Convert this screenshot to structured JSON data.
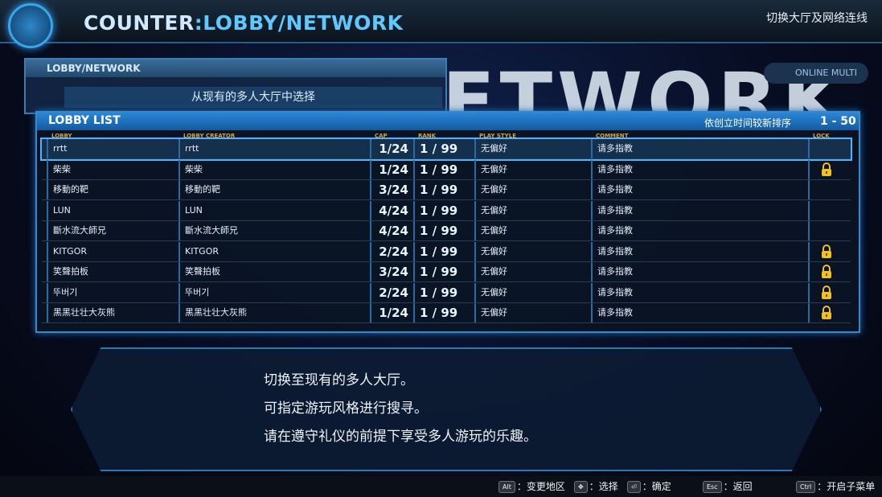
{
  "header": {
    "title_prefix": "COUNTER",
    "title_main": ":LOBBY/NETWORK",
    "hint": "切换大厅及网络连线"
  },
  "badge": "ONLINE MULTI",
  "backdrop_text": "ETWORK",
  "panel": {
    "title": "LOBBY/NETWORK",
    "subtitle": "从现有的多人大厅中选择"
  },
  "list": {
    "title": "LOBBY LIST",
    "sort": "依创立时间较新排序",
    "range": "1 - 50",
    "columns": [
      "LOBBY",
      "LOBBY CREATOR",
      "CAP",
      "RANK",
      "PLAY STYLE",
      "COMMENT",
      "LOCK"
    ],
    "rows": [
      {
        "lobby": "rrtt",
        "creator": "rrtt",
        "cap": "1/24",
        "rank": "1 / 99",
        "style": "无偏好",
        "comment": "请多指教",
        "locked": false
      },
      {
        "lobby": "柴柴",
        "creator": "柴柴",
        "cap": "1/24",
        "rank": "1 / 99",
        "style": "无偏好",
        "comment": "请多指教",
        "locked": true
      },
      {
        "lobby": "移動的靶",
        "creator": "移動的靶",
        "cap": "3/24",
        "rank": "1 / 99",
        "style": "无偏好",
        "comment": "请多指教",
        "locked": false
      },
      {
        "lobby": "LUN",
        "creator": "LUN",
        "cap": "4/24",
        "rank": "1 / 99",
        "style": "无偏好",
        "comment": "请多指教",
        "locked": false
      },
      {
        "lobby": "斷水流大師兄",
        "creator": "斷水流大師兄",
        "cap": "4/24",
        "rank": "1 / 99",
        "style": "无偏好",
        "comment": "请多指教",
        "locked": false
      },
      {
        "lobby": "KITGOR",
        "creator": "KITGOR",
        "cap": "2/24",
        "rank": "1 / 99",
        "style": "无偏好",
        "comment": "请多指教",
        "locked": true
      },
      {
        "lobby": "笑聲拍板",
        "creator": "笑聲拍板",
        "cap": "3/24",
        "rank": "1 / 99",
        "style": "无偏好",
        "comment": "请多指教",
        "locked": true
      },
      {
        "lobby": "뚜버기",
        "creator": "뚜버기",
        "cap": "2/24",
        "rank": "1 / 99",
        "style": "无偏好",
        "comment": "请多指教",
        "locked": true
      },
      {
        "lobby": "黑黑壮壮大灰熊",
        "creator": "黑黑壮壮大灰熊",
        "cap": "1/24",
        "rank": "1 / 99",
        "style": "无偏好",
        "comment": "请多指教",
        "locked": true
      }
    ]
  },
  "description": [
    "切换至现有的多人大厅。",
    "可指定游玩风格进行搜寻。",
    "请在遵守礼仪的前提下享受多人游玩的乐趣。"
  ],
  "footer": [
    {
      "key": "Alt",
      "label": "：变更地区"
    },
    {
      "key": "✥",
      "label": "：选择"
    },
    {
      "key": "⏎",
      "label": "：确定"
    },
    {
      "key": "Esc",
      "label": "：返回"
    },
    {
      "key": "Ctrl",
      "label": "：开启子菜单"
    }
  ]
}
